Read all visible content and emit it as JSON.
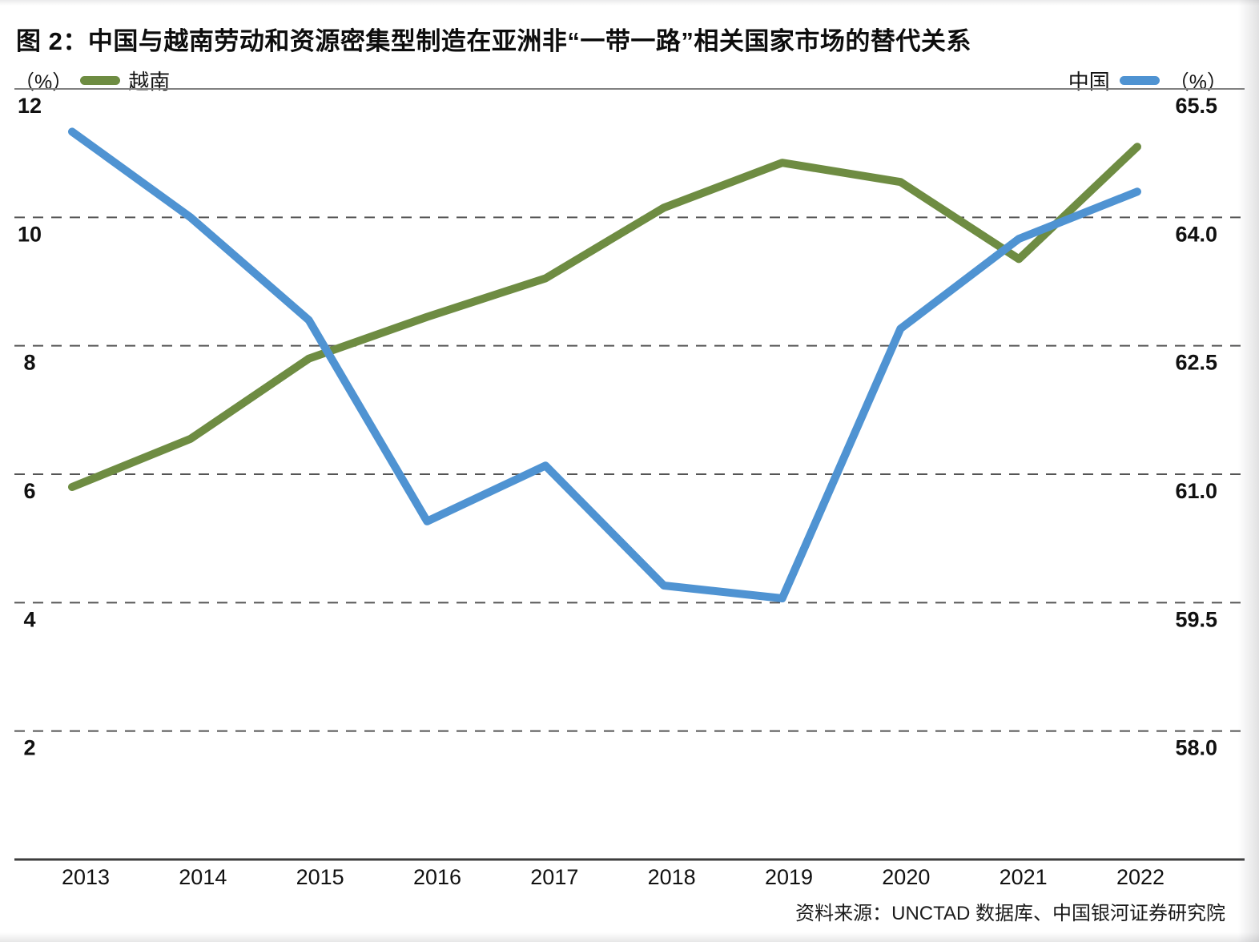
{
  "title": "图 2：中国与越南劳动和资源密集型制造在亚洲非“一带一路”相关国家市场的替代关系",
  "legend": {
    "left_unit": "（%）",
    "left_series_label": "越南",
    "right_series_label": "中国",
    "right_unit": "（%）"
  },
  "colors": {
    "vietnam_green": "#6e8c42",
    "china_blue": "#4f93d2",
    "gridline": "#555555",
    "top_border": "#808080",
    "axis_line": "#3d3d3d",
    "text": "#111111"
  },
  "source_note": "资料来源：UNCTAD 数据库、中国银河证券研究院",
  "chart_data": {
    "type": "line",
    "x": [
      "2013",
      "2014",
      "2015",
      "2016",
      "2017",
      "2018",
      "2019",
      "2020",
      "2021",
      "2022"
    ],
    "series": [
      {
        "name": "越南",
        "axis": "left",
        "color": "#6e8c42",
        "values": [
          5.8,
          6.55,
          7.8,
          8.45,
          9.05,
          10.15,
          10.85,
          10.55,
          9.35,
          11.1
        ]
      },
      {
        "name": "中国",
        "axis": "right",
        "color": "#4f93d2",
        "values": [
          65.0,
          64.0,
          62.8,
          60.45,
          61.1,
          59.7,
          59.55,
          62.7,
          63.75,
          64.3
        ]
      }
    ],
    "left_axis": {
      "unit": "（%）",
      "ticks": [
        "12",
        "10",
        "8",
        "6",
        "4",
        "2"
      ],
      "range": [
        0,
        12
      ]
    },
    "right_axis": {
      "unit": "（%）",
      "ticks": [
        "65.5",
        "64.0",
        "62.5",
        "61.0",
        "59.5",
        "58.0"
      ],
      "range": [
        56.5,
        65.5
      ]
    },
    "grid": "horizontal dashed",
    "legend_position": "top"
  }
}
